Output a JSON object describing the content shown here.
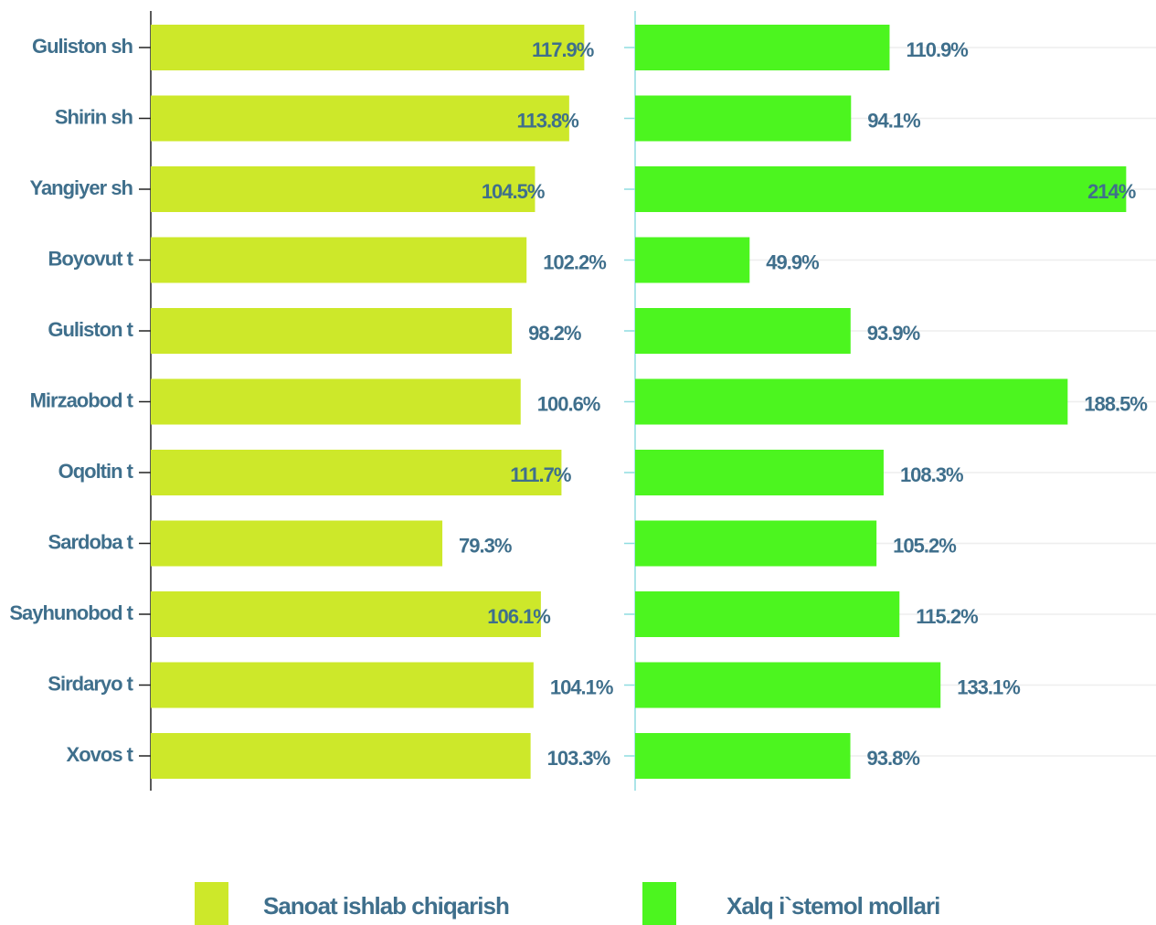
{
  "chart_data": {
    "type": "bar",
    "orientation": "horizontal",
    "categories": [
      "Guliston sh",
      "Shirin sh",
      "Yangiyer sh",
      "Boyovut t",
      "Guliston t",
      "Mirzaobod t",
      "Oqoltin t",
      "Sardoba t",
      "Sayhunobod t",
      "Sirdaryo t",
      "Xovos t"
    ],
    "series": [
      {
        "name": "Sanoat ishlab chiqarish",
        "color": "#cde82a",
        "xlim": [
          0,
          128
        ],
        "values": [
          117.9,
          113.8,
          104.5,
          102.2,
          98.2,
          100.6,
          111.7,
          79.3,
          106.1,
          104.1,
          103.3
        ],
        "value_labels": [
          "117.9%",
          "113.8%",
          "104.5%",
          "102.2%",
          "98.2%",
          "100.6%",
          "111.7%",
          "79.3%",
          "106.1%",
          "104.1%",
          "103.3%"
        ]
      },
      {
        "name": "Xalq i`stemol mollari",
        "color": "#4cf51f",
        "xlim": [
          0,
          227
        ],
        "values": [
          110.9,
          94.1,
          214,
          49.9,
          93.9,
          188.5,
          108.3,
          105.2,
          115.2,
          133.1,
          93.8
        ],
        "value_labels": [
          "110.9%",
          "94.1%",
          "214%",
          "49.9%",
          "93.9%",
          "188.5%",
          "108.3%",
          "105.2%",
          "115.2%",
          "133.1%",
          "93.8%"
        ]
      }
    ],
    "legend": "bottom"
  }
}
